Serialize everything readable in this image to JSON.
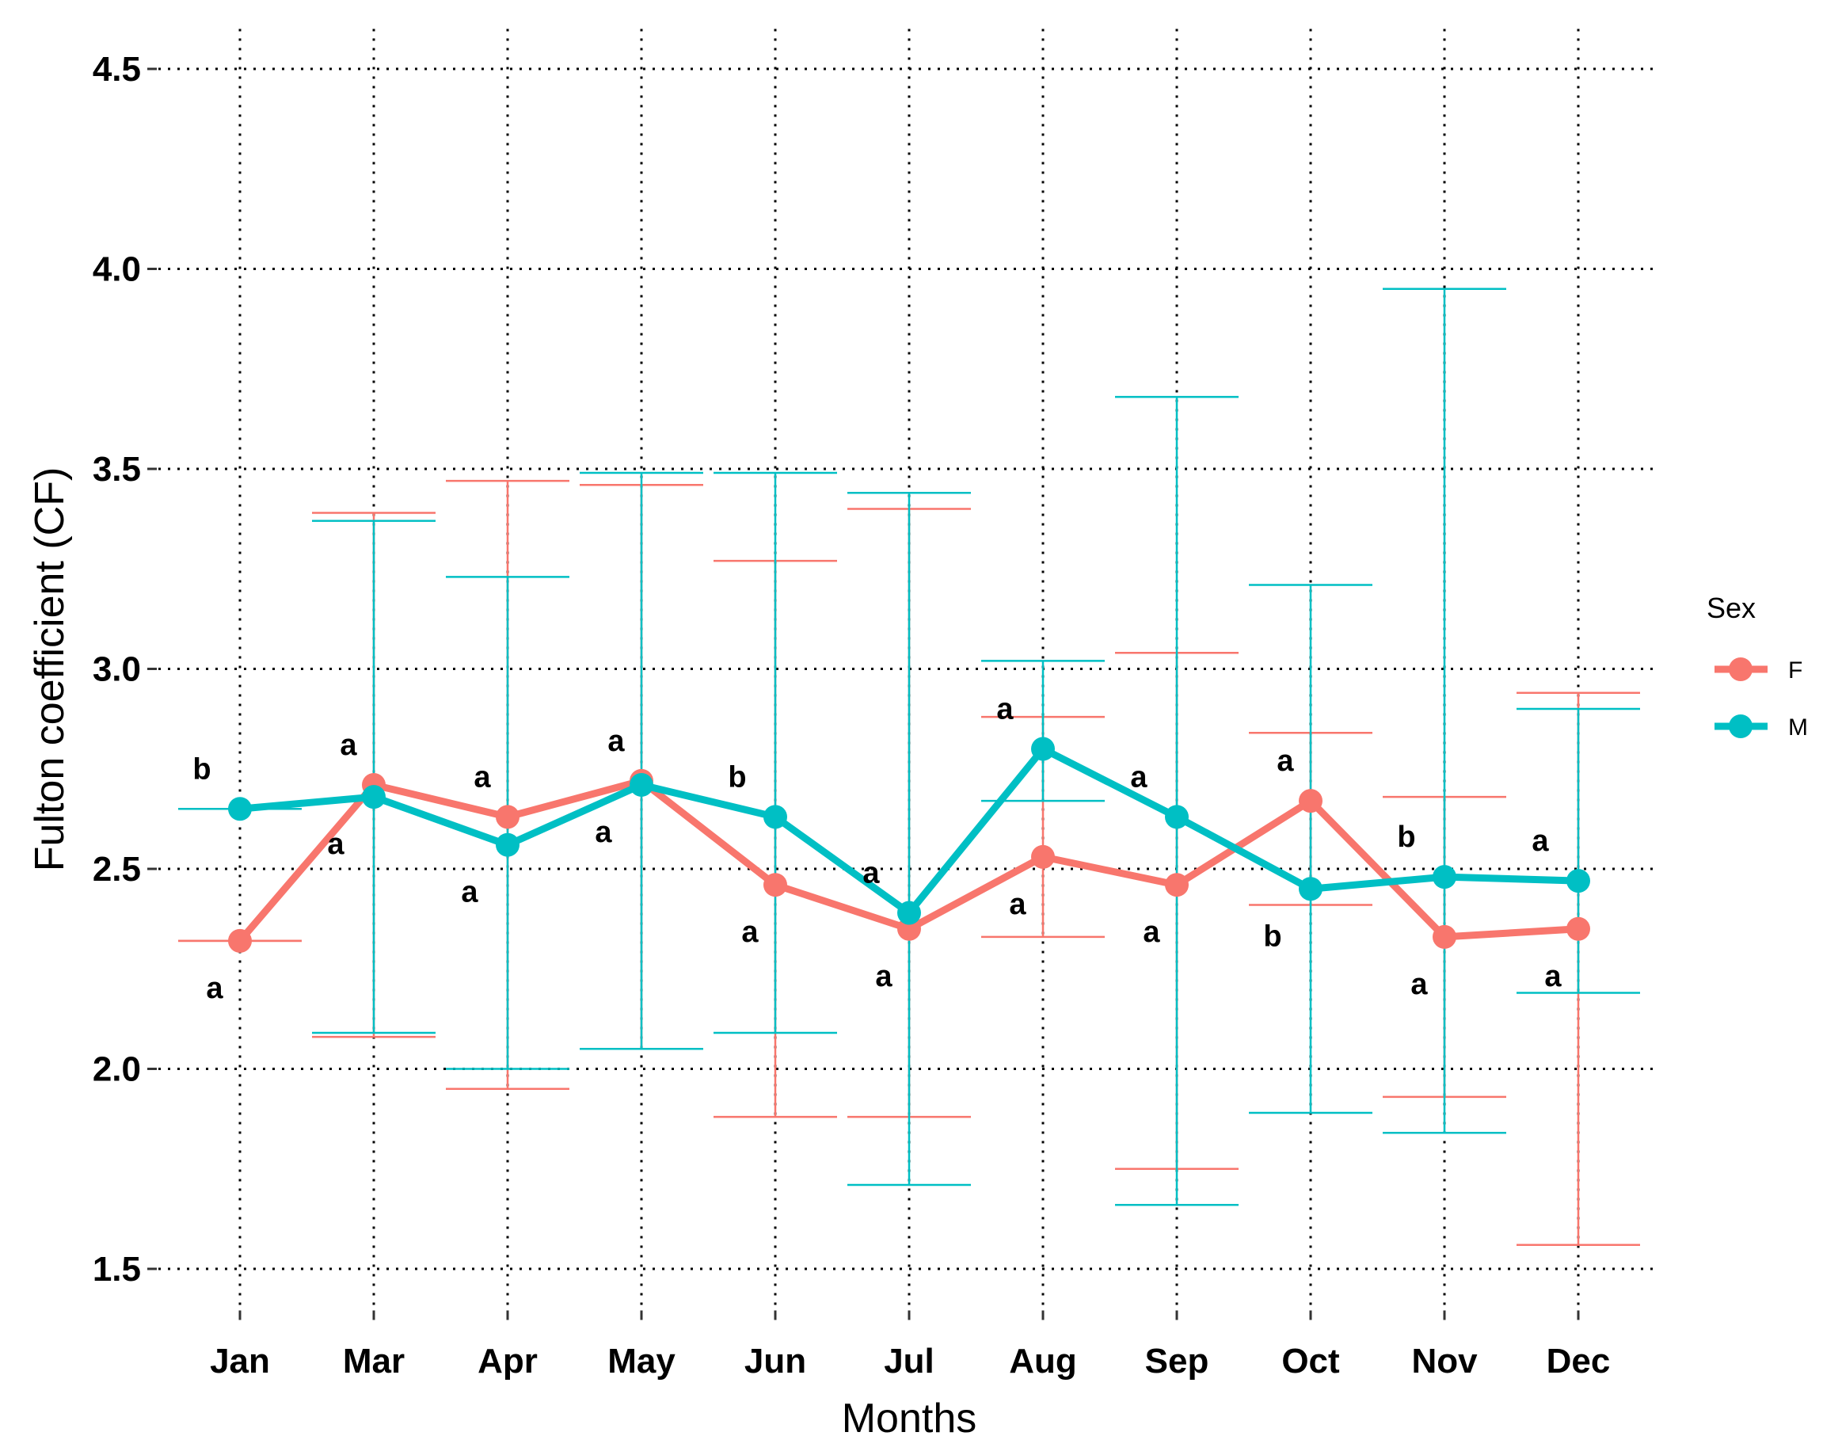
{
  "chart_data": {
    "type": "line",
    "title": "",
    "xlabel": "Months",
    "ylabel": "Fulton coefficient (CF)",
    "categories": [
      "Jan",
      "Mar",
      "Apr",
      "May",
      "Jun",
      "Jul",
      "Aug",
      "Sep",
      "Oct",
      "Nov",
      "Dec"
    ],
    "ylim": [
      1.4,
      4.6
    ],
    "yticks": [
      "1.5",
      "2.0",
      "2.5",
      "3.0",
      "3.5",
      "4.0",
      "4.5"
    ],
    "grid": "dotted major gridlines",
    "legend": {
      "title": "Sex",
      "position": "right"
    },
    "series": [
      {
        "name": "F",
        "color": "#F8766D",
        "values": [
          2.32,
          2.71,
          2.63,
          2.72,
          2.46,
          2.35,
          2.53,
          2.46,
          2.67,
          2.33,
          2.35
        ],
        "err_low": [
          2.32,
          2.08,
          1.95,
          2.05,
          1.88,
          1.88,
          2.33,
          1.75,
          2.41,
          1.93,
          1.56
        ],
        "err_high": [
          2.32,
          3.39,
          3.47,
          3.46,
          3.27,
          3.4,
          2.88,
          3.04,
          2.84,
          2.68,
          2.94
        ],
        "labels": [
          "a",
          "a",
          "a",
          "a",
          "a",
          "a",
          "a",
          "a",
          "a",
          "a",
          "a"
        ]
      },
      {
        "name": "M",
        "color": "#00BFC4",
        "values": [
          2.65,
          2.68,
          2.56,
          2.71,
          2.63,
          2.39,
          2.8,
          2.63,
          2.45,
          2.48,
          2.47
        ],
        "err_low": [
          2.65,
          2.09,
          2.0,
          2.05,
          2.09,
          1.71,
          2.67,
          1.66,
          1.89,
          1.84,
          2.19
        ],
        "err_high": [
          2.65,
          3.37,
          3.23,
          3.49,
          3.49,
          3.44,
          3.02,
          3.68,
          3.21,
          3.95,
          2.9
        ],
        "labels": [
          "b",
          "a",
          "a",
          "a",
          "b",
          "a",
          "a",
          "a",
          "b",
          "b",
          "a"
        ]
      }
    ]
  }
}
